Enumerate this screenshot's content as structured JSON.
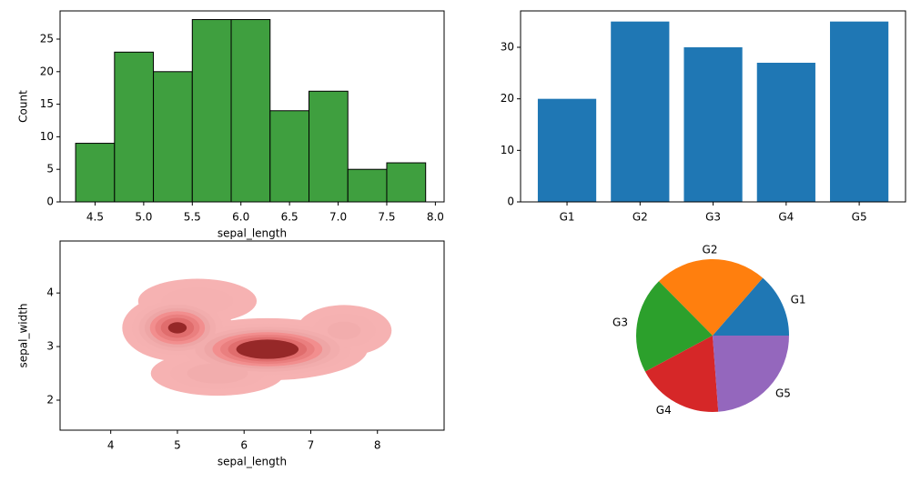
{
  "chart_data": [
    {
      "type": "histogram",
      "xlabel": "sepal_length",
      "ylabel": "Count",
      "color": "#3f9f3f",
      "edgecolor": "#000000",
      "bins": [
        4.3,
        4.7,
        5.1,
        5.5,
        5.9,
        6.3,
        6.7,
        7.1,
        7.5,
        7.9
      ],
      "values": [
        9,
        23,
        20,
        28,
        28,
        14,
        17,
        5,
        6
      ],
      "xlim": [
        4.14,
        8.09
      ],
      "ylim": [
        0,
        29.33
      ],
      "xticks": [
        {
          "value": 4.5,
          "label": "4.5"
        },
        {
          "value": 5,
          "label": "5.0"
        },
        {
          "value": 5.5,
          "label": "5.5"
        },
        {
          "value": 6,
          "label": "6.0"
        },
        {
          "value": 6.5,
          "label": "6.5"
        },
        {
          "value": 7,
          "label": "7.0"
        },
        {
          "value": 7.5,
          "label": "7.5"
        },
        {
          "value": 8,
          "label": "8.0"
        }
      ],
      "yticks": [
        0,
        5,
        10,
        15,
        20,
        25
      ]
    },
    {
      "type": "bar",
      "color": "#1f77b4",
      "categories": [
        "G1",
        "G2",
        "G3",
        "G4",
        "G5"
      ],
      "values": [
        20,
        35,
        30,
        27,
        35
      ],
      "ylim": [
        0,
        37.06
      ],
      "yticks": [
        0,
        10,
        20,
        30
      ]
    },
    {
      "type": "kde",
      "xlabel": "sepal_length",
      "ylabel": "sepal_width",
      "color": "#e8282a",
      "levels": 10,
      "xlim": [
        3.24,
        9.0
      ],
      "ylim": [
        1.44,
        4.97
      ],
      "xticks": [
        4,
        5,
        6,
        7,
        8
      ],
      "yticks": [
        2,
        3,
        4
      ],
      "blobs": [
        {
          "x": 5.0,
          "y": 3.35,
          "sx": 0.4,
          "sy": 0.3,
          "w": 0.85
        },
        {
          "x": 6.35,
          "y": 2.95,
          "sx": 0.7,
          "sy": 0.27,
          "w": 1
        },
        {
          "x": 7.5,
          "y": 3.3,
          "sx": 0.45,
          "sy": 0.3,
          "w": 0.35
        },
        {
          "x": 5.6,
          "y": 2.5,
          "sx": 0.6,
          "sy": 0.25,
          "w": 0.4
        },
        {
          "x": 5.3,
          "y": 3.85,
          "sx": 0.6,
          "sy": 0.28,
          "w": 0.3
        }
      ]
    },
    {
      "type": "pie",
      "categories": [
        "G1",
        "G2",
        "G3",
        "G4",
        "G5"
      ],
      "values": [
        20,
        35,
        30,
        27,
        35
      ],
      "colors": [
        "#1f77b4",
        "#ff7f0e",
        "#2ca02c",
        "#d62728",
        "#9467bd"
      ]
    }
  ]
}
